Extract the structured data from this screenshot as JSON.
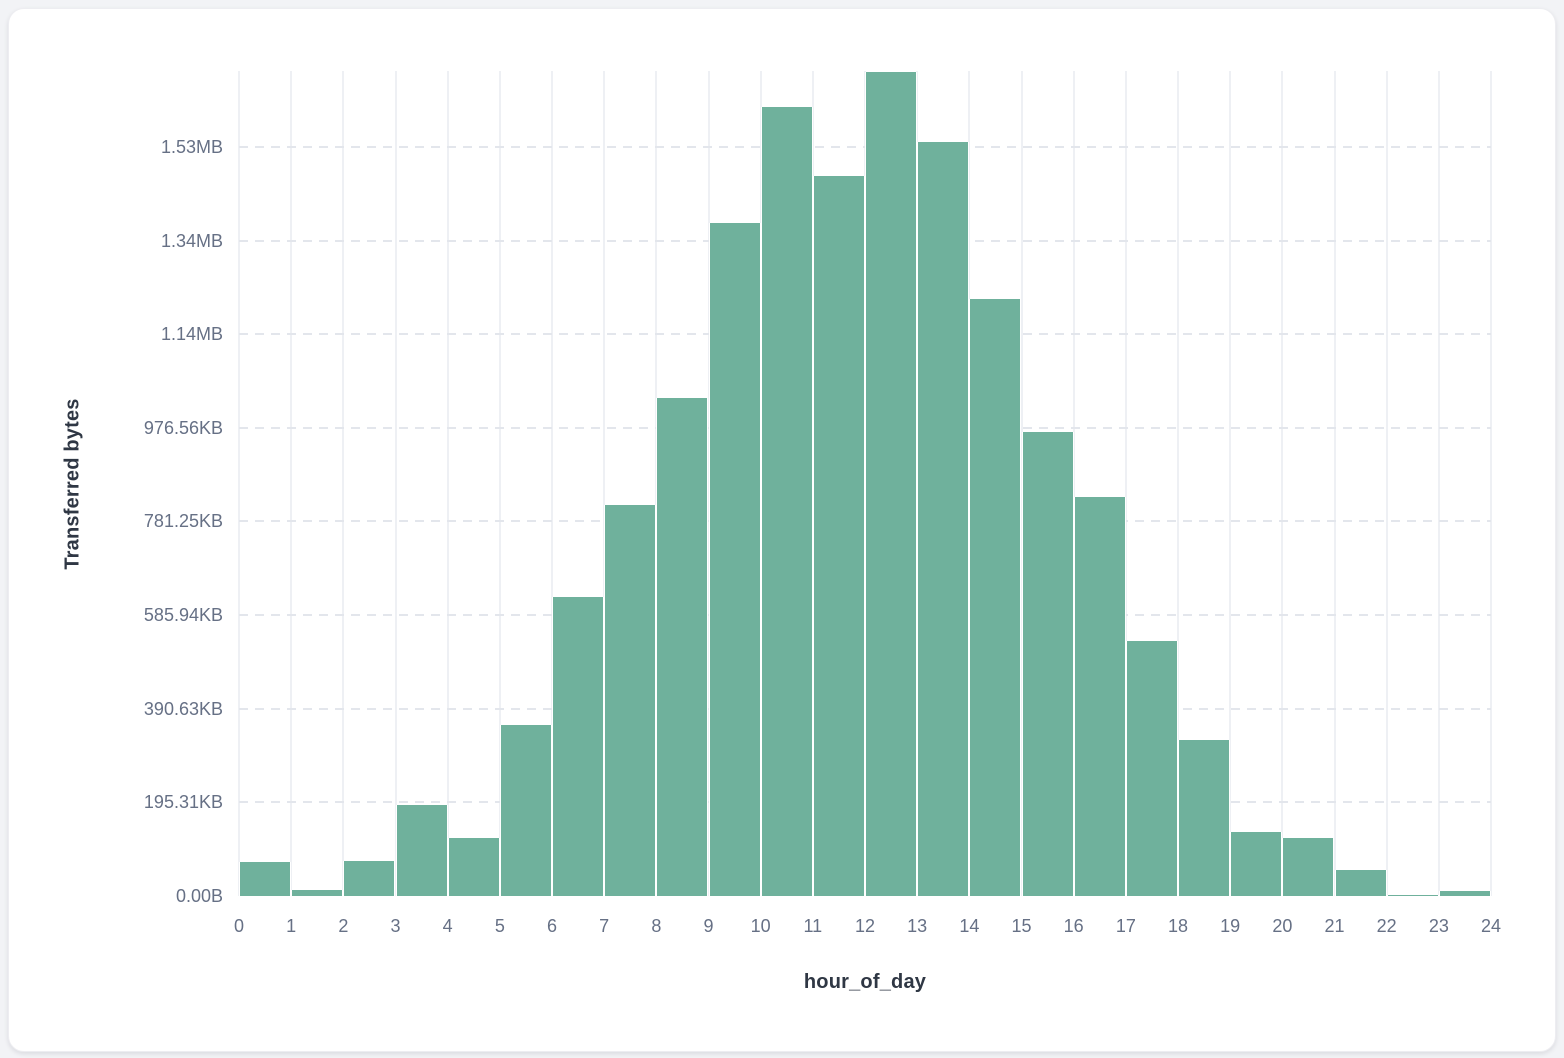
{
  "page": {
    "background_color": "#f2f3f6",
    "card_background_color": "#ffffff"
  },
  "chart_data": {
    "type": "bar",
    "variant": "histogram",
    "title": "",
    "xlabel": "hour_of_day",
    "ylabel": "Transferred bytes",
    "categories": [
      0,
      1,
      2,
      3,
      4,
      5,
      6,
      7,
      8,
      9,
      10,
      11,
      12,
      13,
      14,
      15,
      16,
      17,
      18,
      19,
      20,
      21,
      22,
      23
    ],
    "series": [
      {
        "name": "Transferred bytes",
        "unit": "KiB",
        "values": [
          71,
          13,
          74,
          190,
          122,
          357,
          624,
          816,
          1039,
          1404,
          1645,
          1502,
          1718,
          1572,
          1246,
          969,
          833,
          532,
          325,
          134,
          120,
          54,
          2,
          10
        ]
      }
    ],
    "ylim": [
      0,
      1721
    ],
    "xlim": [
      0,
      24
    ],
    "y_ticks": [
      {
        "label": "0.00B",
        "value": 0
      },
      {
        "label": "195.31KB",
        "value": 195.3125
      },
      {
        "label": "390.63KB",
        "value": 390.625
      },
      {
        "label": "585.94KB",
        "value": 585.9375
      },
      {
        "label": "781.25KB",
        "value": 781.25
      },
      {
        "label": "976.56KB",
        "value": 976.5625
      },
      {
        "label": "1.14MB",
        "value": 1171.875
      },
      {
        "label": "1.34MB",
        "value": 1367.1875
      },
      {
        "label": "1.53MB",
        "value": 1562.5
      }
    ],
    "x_tick_labels": [
      "0",
      "1",
      "2",
      "3",
      "4",
      "5",
      "6",
      "7",
      "8",
      "9",
      "10",
      "11",
      "12",
      "13",
      "14",
      "15",
      "16",
      "17",
      "18",
      "19",
      "20",
      "21",
      "22",
      "23",
      "24"
    ],
    "bar_color": "#6fb19c",
    "grid": true,
    "gridline_color": "#eef0f4",
    "dashed_gridline_color": "#e3e6ec",
    "tick_label_color": "#667085",
    "axis_title_color": "#2f3744",
    "legend_position": "none"
  }
}
